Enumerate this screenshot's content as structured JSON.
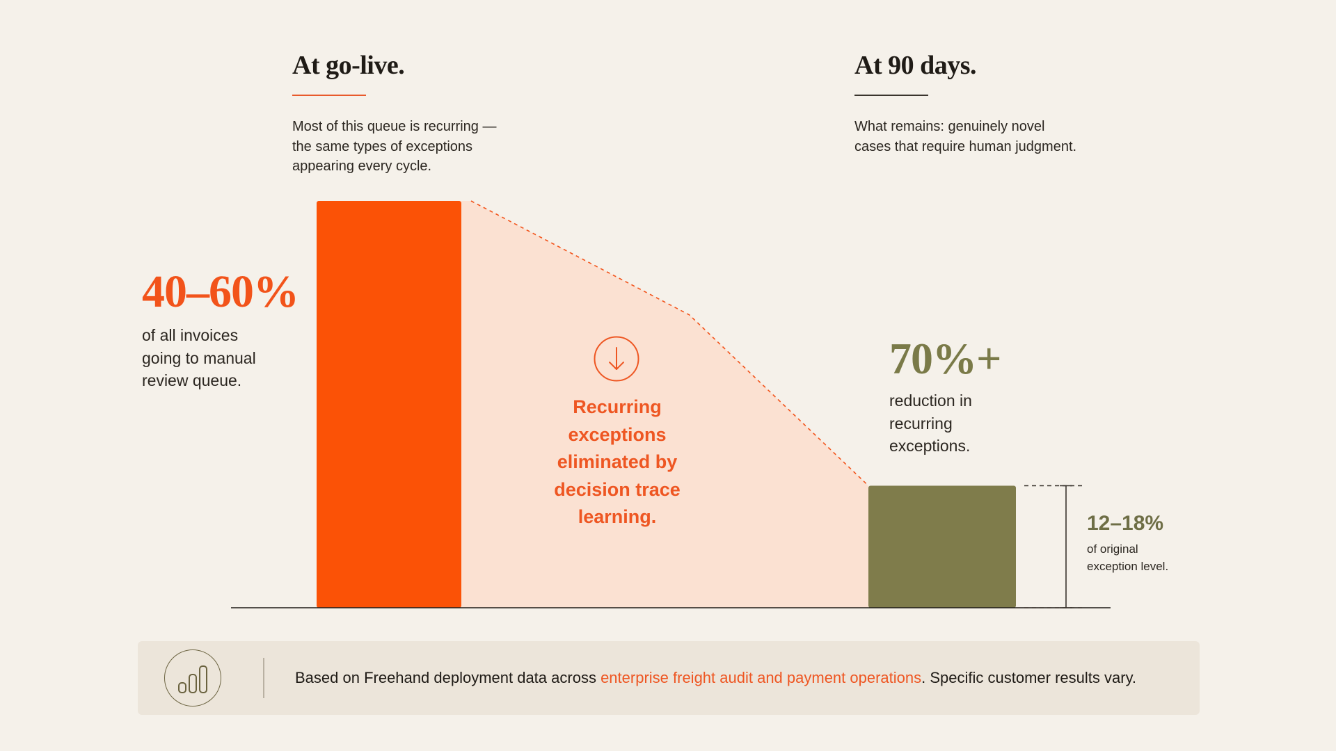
{
  "left_column": {
    "heading": "At go-live.",
    "body": "Most of this queue is recurring — the same types of exceptions appearing every cycle."
  },
  "right_column": {
    "heading": "At 90 days.",
    "body": "What remains: genuinely novel cases that require human judgment."
  },
  "stats": {
    "golive_value": "40–60%",
    "golive_desc": "of all invoices going to manual review queue.",
    "reduction_value": "70%+",
    "reduction_desc": "reduction in recurring exceptions.",
    "remaining_value": "12–18%",
    "remaining_desc": "of original exception level."
  },
  "center_label": "Recurring exceptions eliminated by decision trace learning.",
  "footer": {
    "prefix": "Based on Freehand deployment data across ",
    "highlight": "enterprise freight audit and payment operations",
    "suffix": ". Specific customer results vary."
  },
  "chart_data": {
    "type": "bar",
    "categories": [
      "",
      ""
    ],
    "values": [
      50,
      15
    ],
    "ylim": [
      0,
      50
    ],
    "grid": false,
    "legend": "none"
  },
  "colors": {
    "background": "#f5f1ea",
    "golive_bar": "#fb5206",
    "ninety_day_bar": "#7f7c4b",
    "reduction_area": "#fbe1d2",
    "accent_text": "#ee5622",
    "footer_bg": "#ece5da"
  },
  "icons": {
    "arrow": "arrow-down-circle-icon",
    "footer": "bar-chart-icon"
  }
}
